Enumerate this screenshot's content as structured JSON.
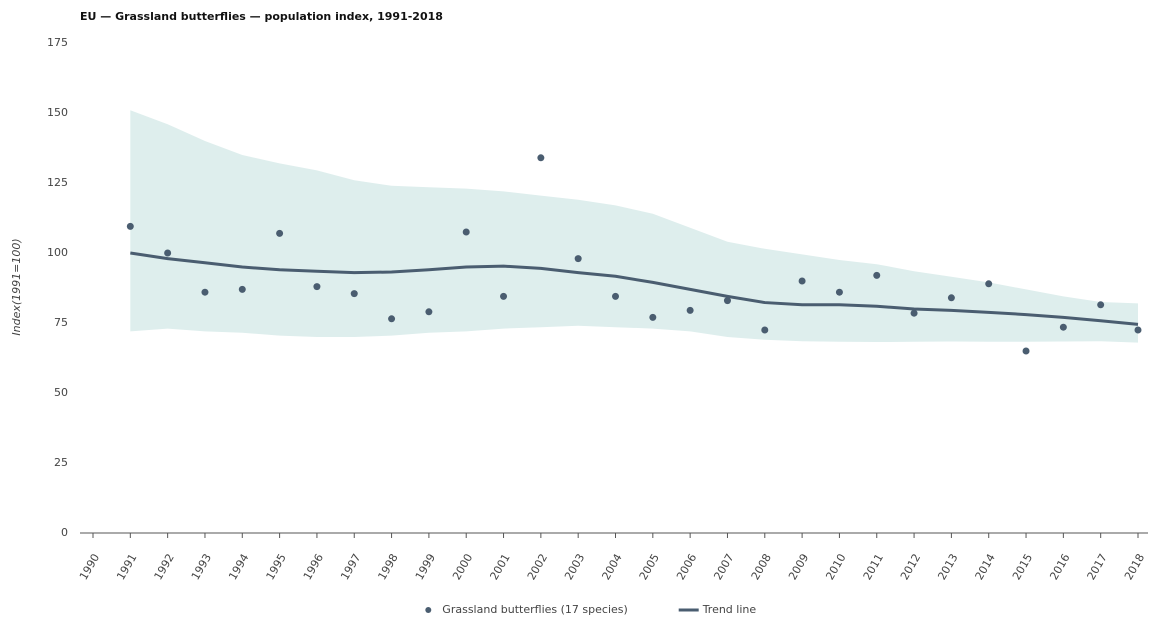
{
  "chart_data": {
    "type": "line",
    "title": "EU — Grassland butterflies — population index, 1991-2018",
    "y_label": "Index(1991=100)",
    "x": [
      1991,
      1992,
      1993,
      1994,
      1995,
      1996,
      1997,
      1998,
      1999,
      2000,
      2001,
      2002,
      2003,
      2004,
      2005,
      2006,
      2007,
      2008,
      2009,
      2010,
      2011,
      2012,
      2013,
      2014,
      2015,
      2016,
      2017,
      2018
    ],
    "series": [
      {
        "name": "Grassland butterflies (17 species)",
        "color": "#4a5d70",
        "mode": "markers",
        "values": [
          109.5,
          100,
          86,
          87,
          107,
          88,
          85.5,
          76.5,
          79,
          107.5,
          84.5,
          134,
          98,
          84.5,
          77,
          79.5,
          83,
          72.5,
          90,
          86,
          92,
          78.5,
          84,
          89,
          65,
          73.5,
          81.5,
          72.5
        ]
      },
      {
        "name": "Trend line",
        "color": "#4a5d70",
        "mode": "line",
        "values": [
          100,
          98,
          96.5,
          95,
          94,
          93.5,
          93,
          93.2,
          94,
          95,
          95.3,
          94.5,
          93,
          91.7,
          89.5,
          87,
          84.5,
          82.3,
          81.5,
          81.5,
          81,
          80,
          79.5,
          78.8,
          78,
          77,
          75.8,
          74.5
        ]
      }
    ],
    "band": {
      "color": "#deeeed",
      "upper": [
        151,
        146,
        140,
        135,
        132,
        129.5,
        126,
        124,
        123.5,
        123,
        122,
        120.5,
        119,
        117,
        114,
        109,
        104,
        101.5,
        99.5,
        97.5,
        96,
        93.5,
        91.5,
        89.5,
        87,
        84.5,
        82.5,
        82
      ],
      "lower": [
        72,
        73,
        72,
        71.5,
        70.5,
        70,
        70,
        70.5,
        71.5,
        72,
        73,
        73.5,
        74,
        73.5,
        73,
        72,
        70,
        69,
        68.5,
        68.3,
        68.2,
        68.3,
        68.4,
        68.3,
        68.3,
        68.4,
        68.5,
        68
      ]
    },
    "xlim": [
      1990,
      2018
    ],
    "xticks": [
      1990,
      1991,
      1992,
      1993,
      1994,
      1995,
      1996,
      1997,
      1998,
      1999,
      2000,
      2001,
      2002,
      2003,
      2004,
      2005,
      2006,
      2007,
      2008,
      2009,
      2010,
      2011,
      2012,
      2013,
      2014,
      2015,
      2016,
      2017,
      2018
    ],
    "ylim": [
      0,
      175
    ],
    "yticks": [
      0,
      25,
      50,
      75,
      100,
      125,
      150,
      175
    ],
    "grid": false,
    "legend": "bottom"
  }
}
